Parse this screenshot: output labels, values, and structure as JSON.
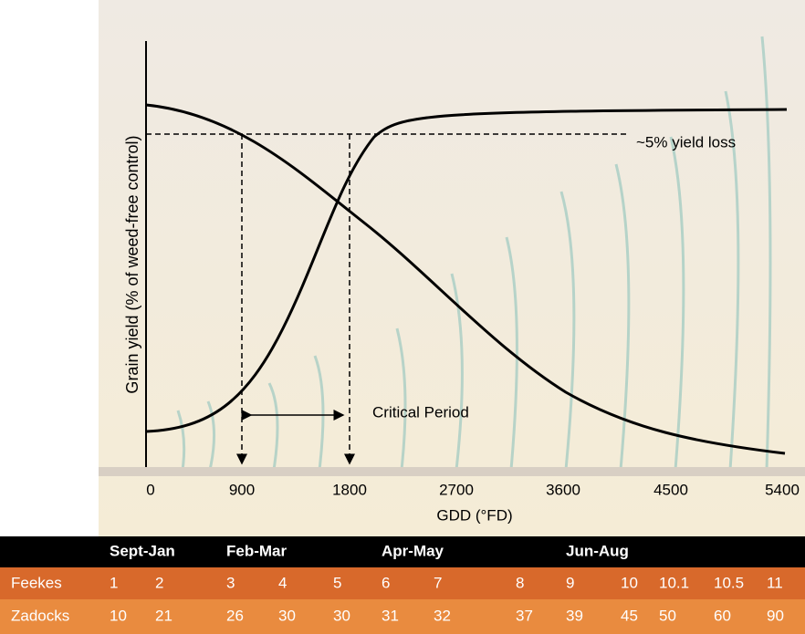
{
  "axis": {
    "y_label": "Grain yield (% of weed-free control)",
    "x_label": "GDD (°FD)",
    "x_ticks": [
      "0",
      "900",
      "1800",
      "2700",
      "3600",
      "4500",
      "5400"
    ]
  },
  "annotations": {
    "yield_loss": "~5% yield loss",
    "critical_period": "Critical Period"
  },
  "table": {
    "header": [
      "Sept-Jan",
      "Feb-Mar",
      "Apr-May",
      "Jun-Aug"
    ],
    "rows": [
      {
        "label": "Feekes",
        "values": [
          "1",
          "2",
          "3",
          "4",
          "5",
          "6",
          "7",
          "8",
          "9",
          "10",
          "10.1",
          "10.5",
          "11"
        ]
      },
      {
        "label": "Zadocks",
        "values": [
          "10",
          "21",
          "26",
          "30",
          "30",
          "31",
          "32",
          "37",
          "39",
          "45",
          "50",
          "60",
          "90"
        ]
      }
    ]
  }
}
